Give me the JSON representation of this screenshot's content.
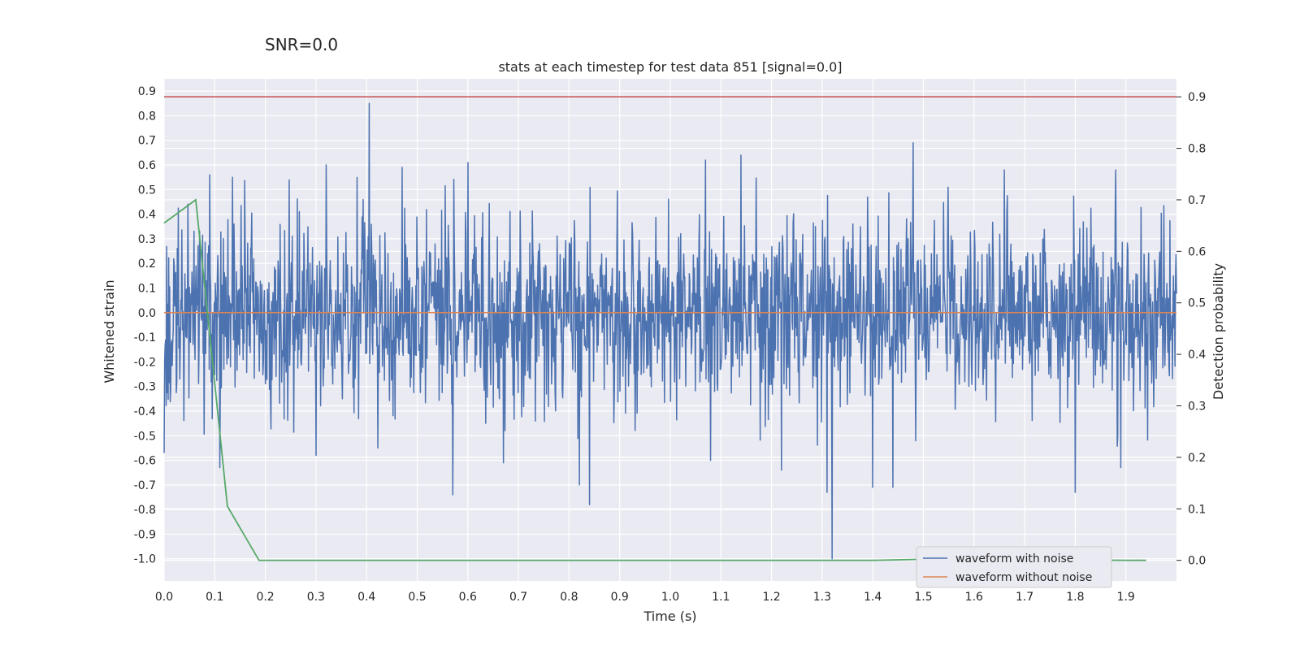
{
  "suptitle": "SNR=0.0",
  "chart_data": {
    "type": "line",
    "title": "stats at each timestep for test data 851 [signal=0.0]",
    "xlabel": "Time (s)",
    "ylabel": "Whitened strain",
    "y2label": "Detection probability",
    "xlim": [
      0.0,
      2.0
    ],
    "ylim": [
      -1.09,
      0.95
    ],
    "y2lim": [
      -0.04,
      0.935
    ],
    "x_ticks": [
      "0.0",
      "0.1",
      "0.2",
      "0.3",
      "0.4",
      "0.5",
      "0.6",
      "0.7",
      "0.8",
      "0.9",
      "1.0",
      "1.1",
      "1.2",
      "1.3",
      "1.4",
      "1.5",
      "1.6",
      "1.7",
      "1.8",
      "1.9"
    ],
    "y_ticks": [
      "0.9",
      "0.8",
      "0.7",
      "0.6",
      "0.5",
      "0.4",
      "0.3",
      "0.2",
      "0.1",
      "0.0",
      "-0.1",
      "-0.2",
      "-0.3",
      "-0.4",
      "-0.5",
      "-0.6",
      "-0.7",
      "-0.8",
      "-0.9",
      "-1.0"
    ],
    "y2_ticks": [
      "0.9",
      "0.8",
      "0.7",
      "0.6",
      "0.5",
      "0.4",
      "0.3",
      "0.2",
      "0.1",
      "0.0"
    ],
    "grid": true,
    "legend_position": "lower right",
    "colors": {
      "noise": "#4c72b0",
      "clean": "#dd8452",
      "prob": "#55a868",
      "threshold": "#c44e52",
      "background": "#eaeaf2"
    },
    "series": [
      {
        "name": "waveform with noise",
        "axis": "left",
        "sample_count": 2000,
        "x_range": [
          0.0,
          2.0
        ],
        "noise_std": 0.19,
        "spikes": [
          {
            "x": 0.0,
            "y": -0.57
          },
          {
            "x": 0.09,
            "y": 0.56
          },
          {
            "x": 0.11,
            "y": -0.63
          },
          {
            "x": 0.135,
            "y": 0.55
          },
          {
            "x": 0.3,
            "y": -0.58
          },
          {
            "x": 0.32,
            "y": 0.6
          },
          {
            "x": 0.405,
            "y": 0.85
          },
          {
            "x": 0.47,
            "y": 0.59
          },
          {
            "x": 0.57,
            "y": -0.74
          },
          {
            "x": 0.6,
            "y": 0.61
          },
          {
            "x": 0.67,
            "y": -0.61
          },
          {
            "x": 0.82,
            "y": -0.7
          },
          {
            "x": 0.84,
            "y": -0.78
          },
          {
            "x": 1.07,
            "y": 0.62
          },
          {
            "x": 1.08,
            "y": -0.6
          },
          {
            "x": 1.14,
            "y": 0.64
          },
          {
            "x": 1.22,
            "y": -0.64
          },
          {
            "x": 1.31,
            "y": -0.73
          },
          {
            "x": 1.32,
            "y": -1.0
          },
          {
            "x": 1.4,
            "y": -0.71
          },
          {
            "x": 1.44,
            "y": -0.71
          },
          {
            "x": 1.48,
            "y": 0.69
          },
          {
            "x": 1.66,
            "y": 0.58
          },
          {
            "x": 1.8,
            "y": -0.73
          },
          {
            "x": 1.88,
            "y": 0.58
          },
          {
            "x": 1.89,
            "y": -0.63
          }
        ]
      },
      {
        "name": "waveform without noise",
        "axis": "left",
        "x": [
          0.0,
          2.0
        ],
        "y": [
          0.0,
          0.0
        ]
      },
      {
        "axis": "right",
        "x": [
          0.0,
          0.0625,
          0.125,
          0.1875,
          0.25,
          0.5,
          1.0,
          1.4,
          1.5,
          1.94
        ],
        "y": [
          0.655,
          0.7,
          0.105,
          0.0,
          0.0,
          0.0,
          0.0,
          0.0,
          0.002,
          0.0
        ]
      },
      {
        "axis": "right",
        "x": [
          0.0,
          2.0
        ],
        "y": [
          0.9,
          0.9
        ]
      }
    ]
  }
}
